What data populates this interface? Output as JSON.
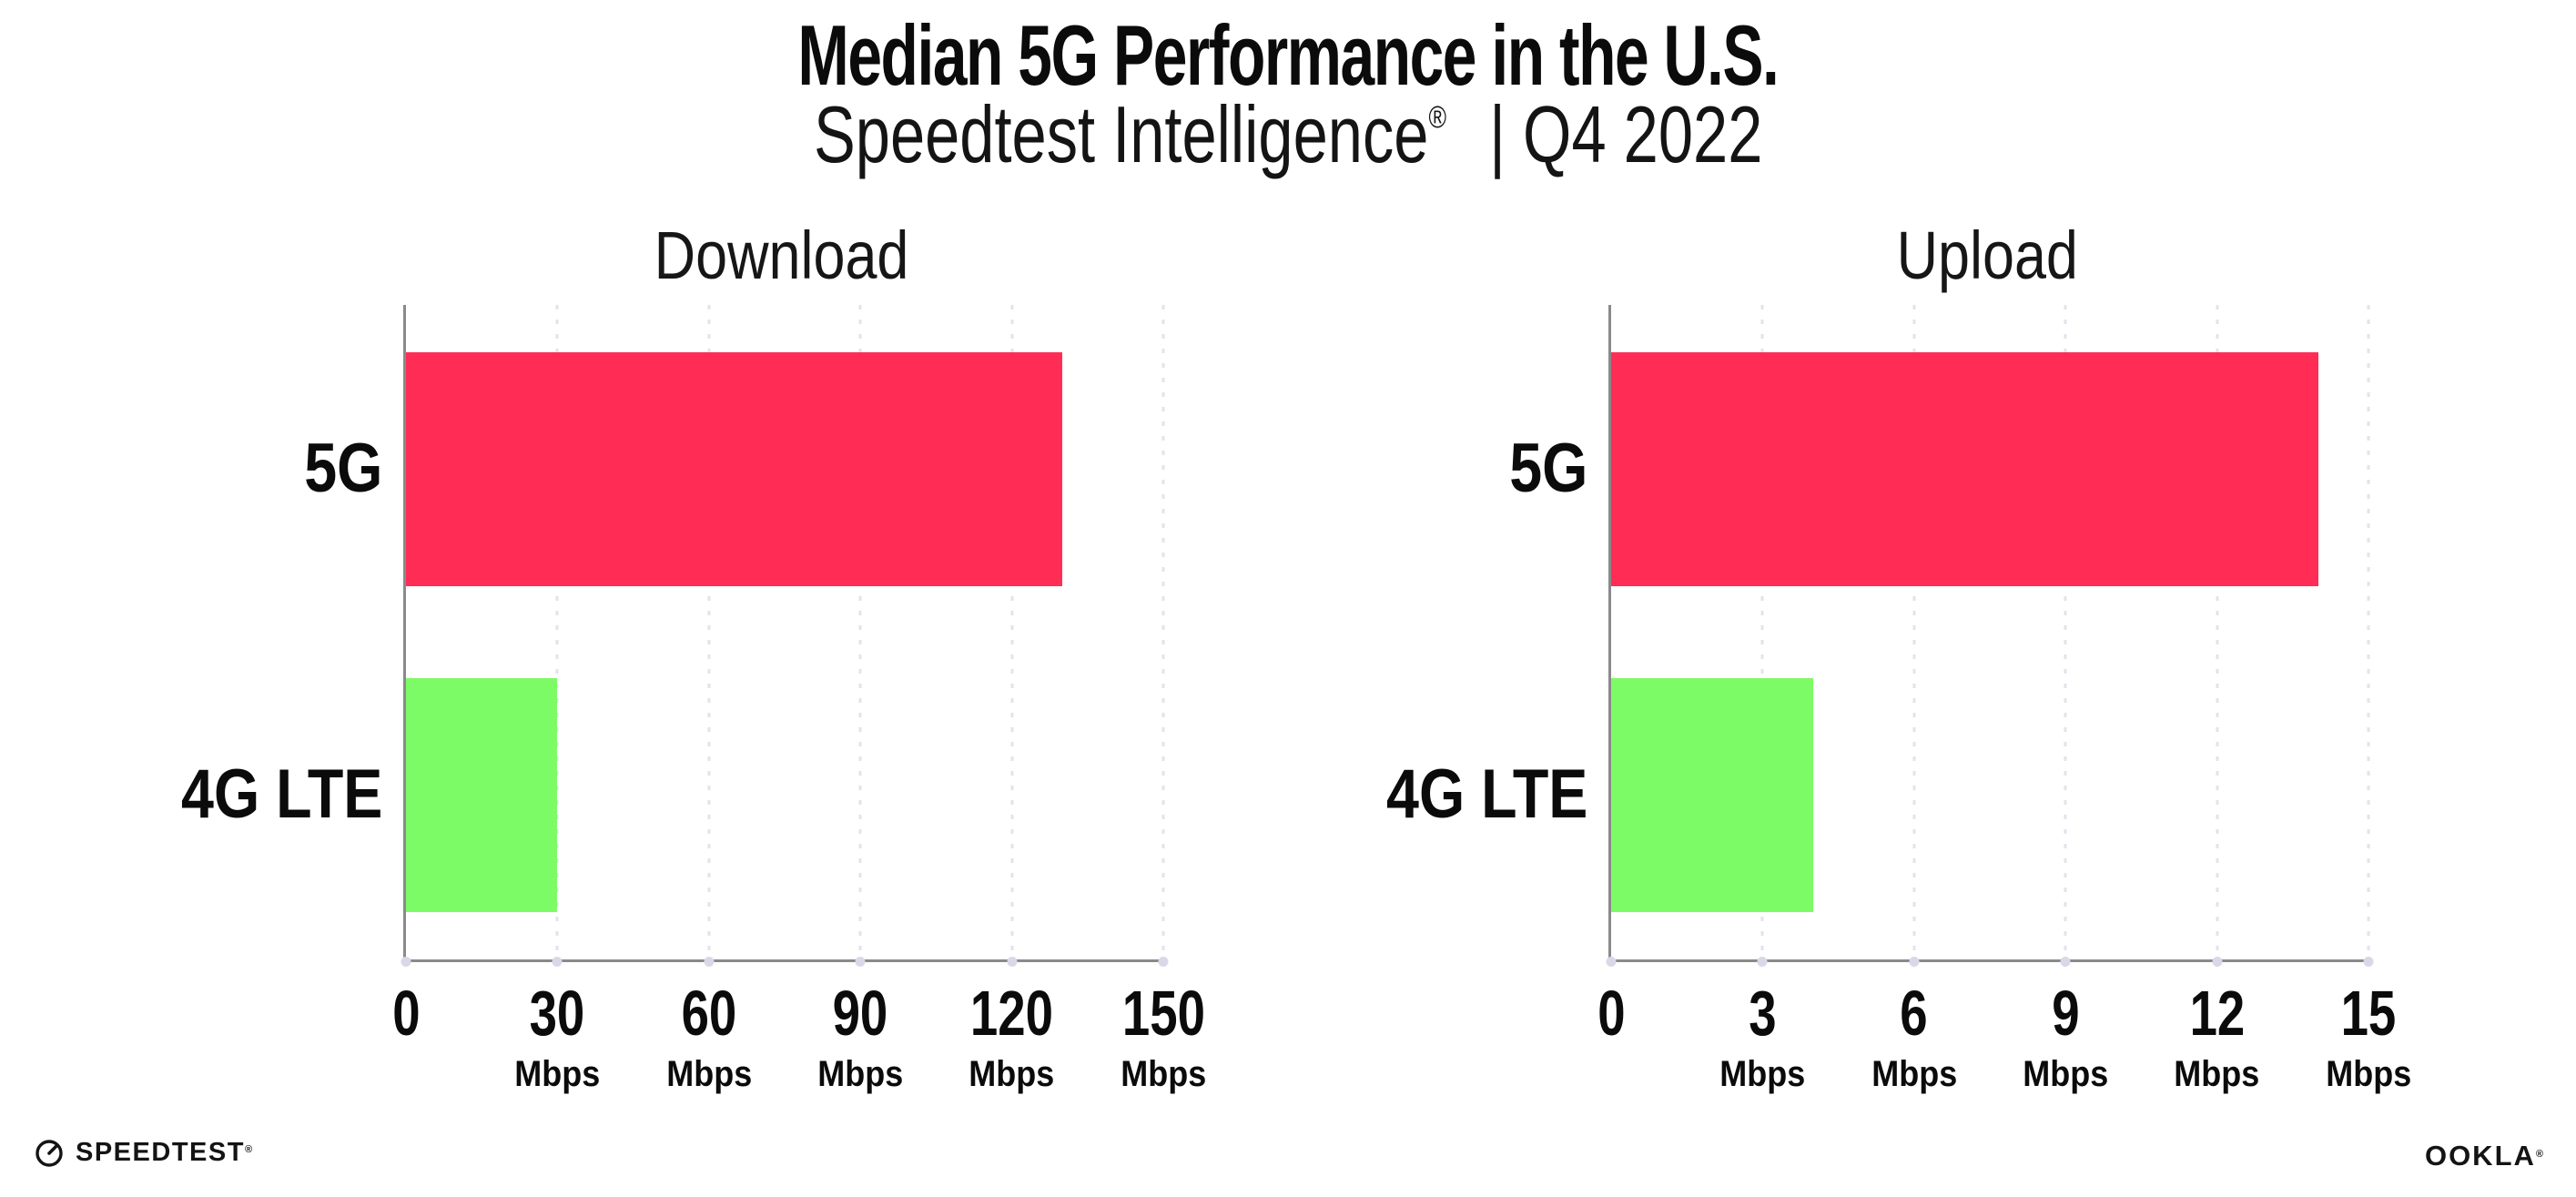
{
  "header": {
    "title": "Median 5G Performance in the U.S.",
    "subtitle": {
      "brand": "Speedtest Intelligence",
      "reg": "®",
      "rest": "| Q4 2022"
    }
  },
  "chart_data": [
    {
      "type": "bar",
      "orientation": "horizontal",
      "title": "Download",
      "categories": [
        "5G",
        "4G LTE"
      ],
      "values": [
        130,
        30
      ],
      "unit": "Mbps",
      "xlim": [
        0,
        150
      ],
      "xticks": [
        0,
        30,
        60,
        90,
        120,
        150
      ],
      "bar_colors": [
        "#FF2D55",
        "#7DFB66"
      ],
      "grid": "dotted-vertical",
      "legend": "none"
    },
    {
      "type": "bar",
      "orientation": "horizontal",
      "title": "Upload",
      "categories": [
        "5G",
        "4G LTE"
      ],
      "values": [
        14,
        4
      ],
      "unit": "Mbps",
      "xlim": [
        0,
        15
      ],
      "xticks": [
        0,
        3,
        6,
        9,
        12,
        15
      ],
      "bar_colors": [
        "#FF2D55",
        "#7DFB66"
      ],
      "grid": "dotted-vertical",
      "legend": "none"
    }
  ],
  "colors": {
    "bar_5g": "#FF2D55",
    "bar_4g_lte": "#7DFB66",
    "grid": "#E3E3EE",
    "axis": "#8A8A8A",
    "tick_dot": "#D8D8E8",
    "text": "#0B0B0B"
  },
  "footer": {
    "speedtest": {
      "label": "SPEEDTEST",
      "reg": "®"
    },
    "ookla": {
      "label": "OOKLA",
      "reg": "®"
    }
  }
}
